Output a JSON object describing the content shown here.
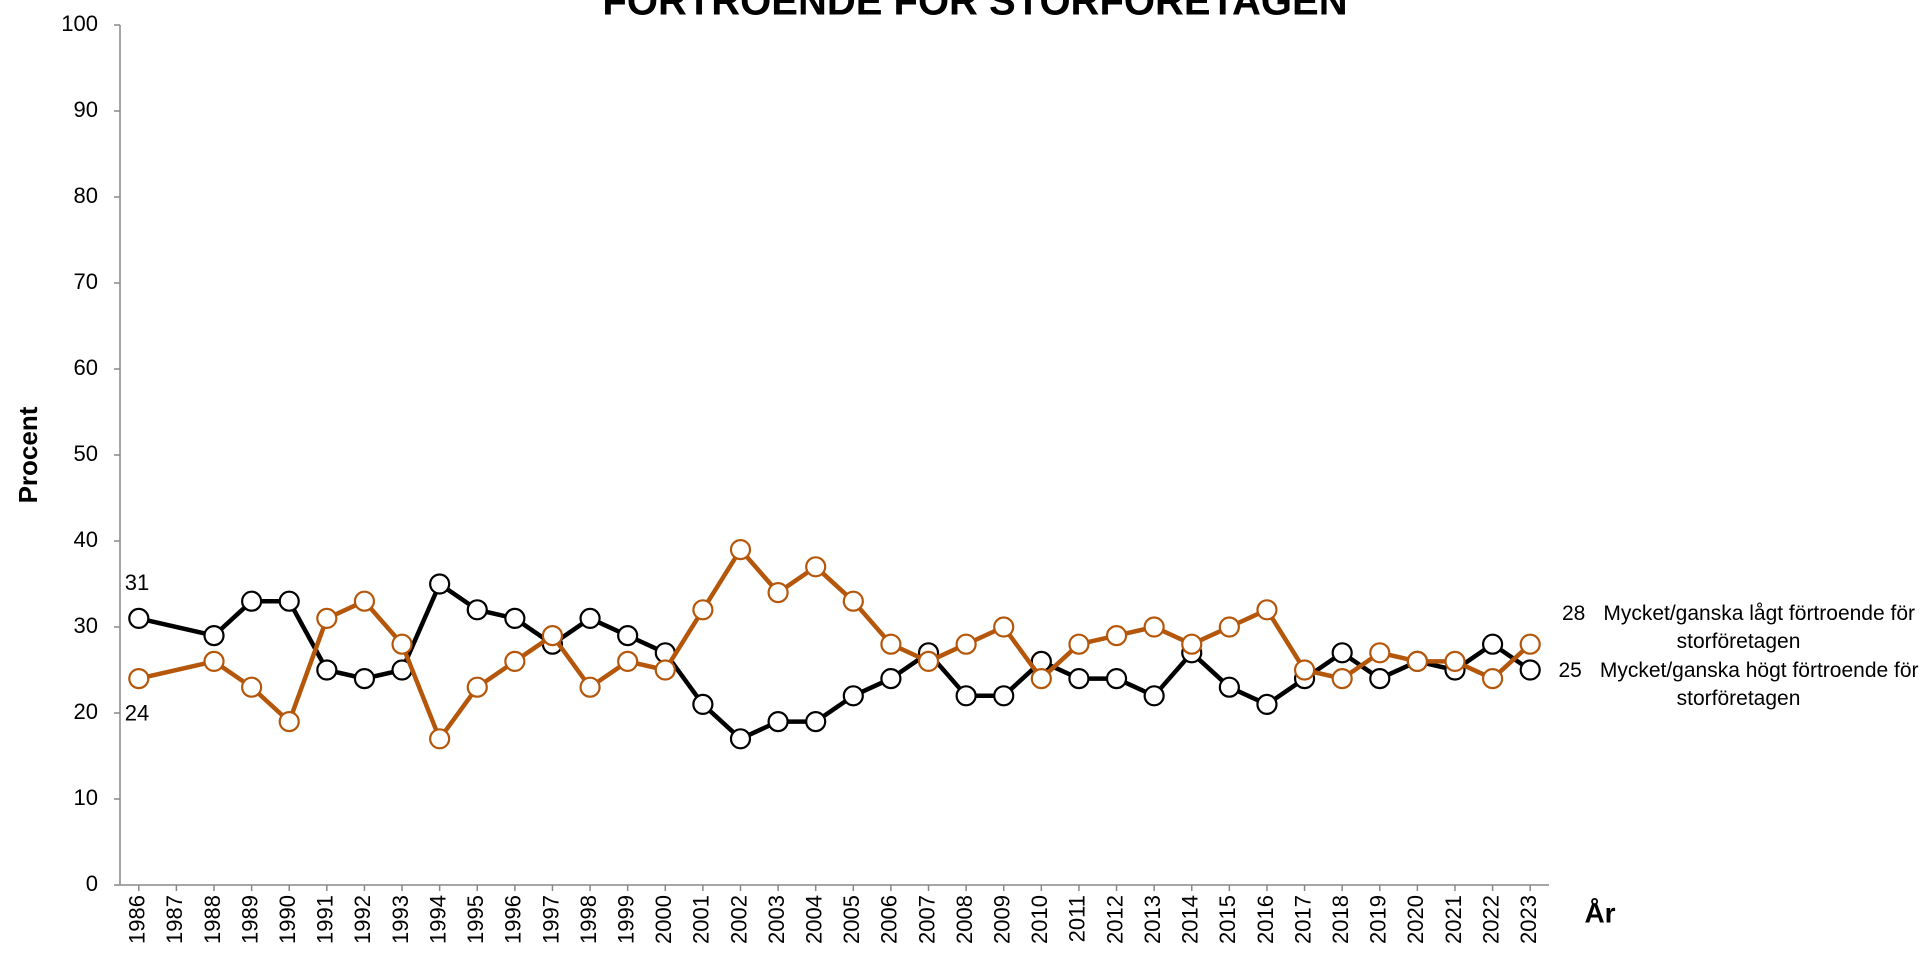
{
  "chart_data": {
    "type": "line",
    "title": "FÖRTROENDE FÖR STORFÖRETAGEN",
    "y_label": "Procent",
    "x_label": "År",
    "x": [
      1986,
      1988,
      1989,
      1990,
      1991,
      1992,
      1993,
      1994,
      1995,
      1996,
      1997,
      1998,
      1999,
      2000,
      2001,
      2002,
      2003,
      2004,
      2005,
      2006,
      2007,
      2008,
      2009,
      2010,
      2011,
      2012,
      2013,
      2014,
      2015,
      2016,
      2017,
      2018,
      2019,
      2020,
      2021,
      2022,
      2023
    ],
    "series": [
      {
        "name": "Mycket/ganska högt förtroende för storföretagen",
        "color": "#000000",
        "values": [
          31,
          29,
          33,
          33,
          25,
          24,
          25,
          35,
          32,
          31,
          28,
          31,
          29,
          27,
          21,
          17,
          19,
          19,
          22,
          24,
          27,
          22,
          22,
          26,
          24,
          24,
          22,
          27,
          23,
          21,
          24,
          27,
          24,
          26,
          25,
          28,
          25
        ]
      },
      {
        "name": "Mycket/ganska lågt förtroende för storföretagen",
        "color": "#b5570b",
        "values": [
          24,
          26,
          23,
          19,
          31,
          33,
          28,
          17,
          23,
          26,
          29,
          23,
          26,
          25,
          32,
          39,
          34,
          37,
          33,
          28,
          26,
          28,
          30,
          24,
          28,
          29,
          30,
          28,
          30,
          32,
          25,
          24,
          27,
          26,
          26,
          24,
          28
        ]
      }
    ],
    "xlim": [
      1985.5,
      2023.5
    ],
    "xticks": [
      1986,
      1987,
      1988,
      1989,
      1990,
      1991,
      1992,
      1993,
      1994,
      1995,
      1996,
      1997,
      1998,
      1999,
      2000,
      2001,
      2002,
      2003,
      2004,
      2005,
      2006,
      2007,
      2008,
      2009,
      2010,
      2011,
      2012,
      2013,
      2014,
      2015,
      2016,
      2017,
      2018,
      2019,
      2020,
      2021,
      2022,
      2023
    ],
    "ylim": [
      0,
      100
    ],
    "yticks": [
      0,
      10,
      20,
      30,
      40,
      50,
      60,
      70,
      80,
      90,
      100
    ]
  }
}
